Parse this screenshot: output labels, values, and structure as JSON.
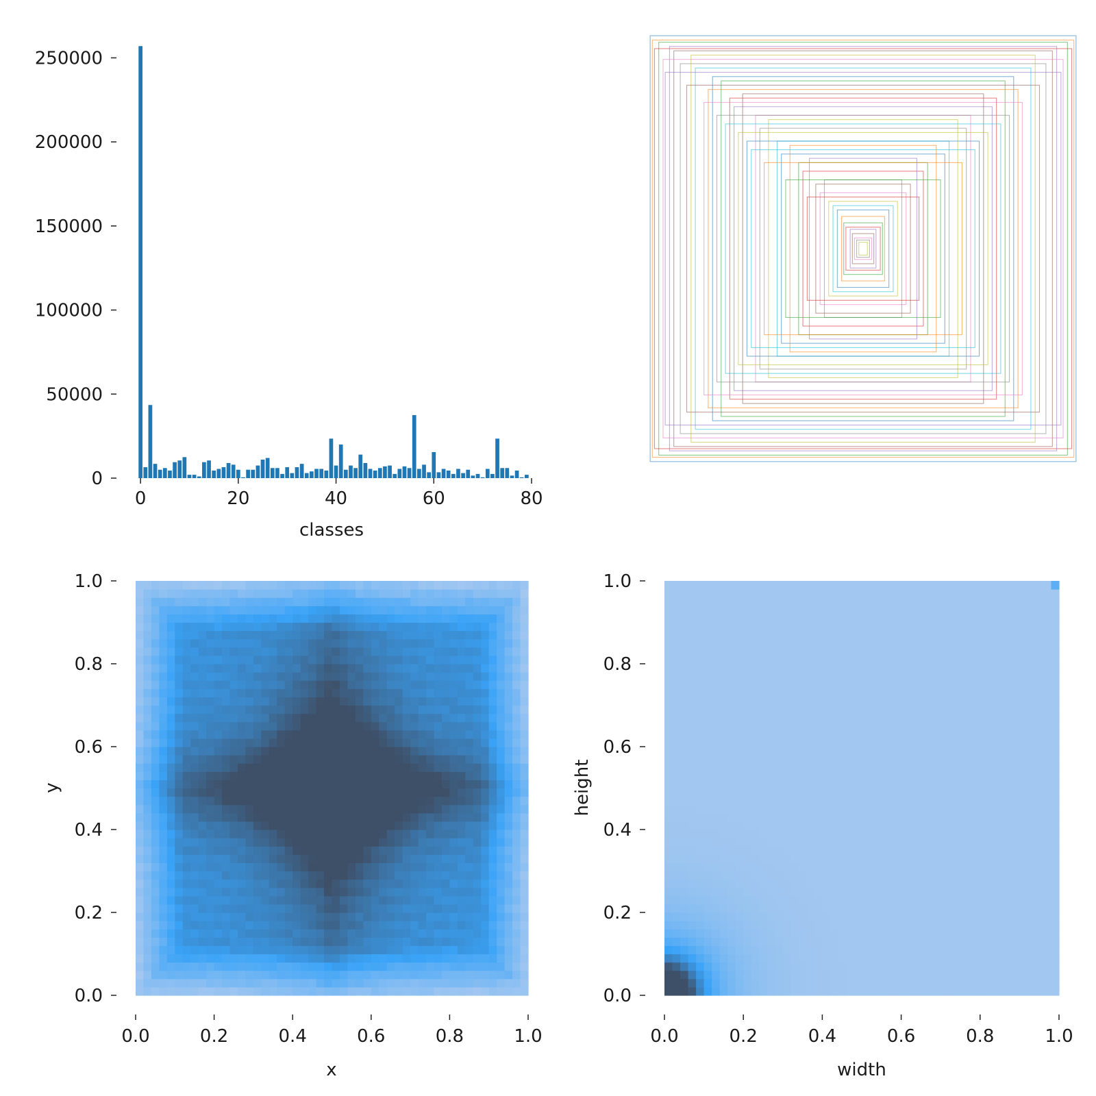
{
  "chart_data": [
    {
      "id": "classes-histogram",
      "type": "bar",
      "xlabel": "classes",
      "ylabel": "",
      "xlim": [
        -1,
        80
      ],
      "ylim": [
        0,
        262000
      ],
      "xticks": [
        0,
        20,
        40,
        60,
        80
      ],
      "yticks": [
        0,
        50000,
        100000,
        150000,
        200000,
        250000
      ],
      "xtick_labels": [
        "0",
        "20",
        "40",
        "60",
        "80"
      ],
      "ytick_labels": [
        "0",
        "50000",
        "100000",
        "150000",
        "200000",
        "250000"
      ],
      "color": "#1f77b4",
      "categories": [
        0,
        1,
        2,
        3,
        4,
        5,
        6,
        7,
        8,
        9,
        10,
        11,
        12,
        13,
        14,
        15,
        16,
        17,
        18,
        19,
        20,
        21,
        22,
        23,
        24,
        25,
        26,
        27,
        28,
        29,
        30,
        31,
        32,
        33,
        34,
        35,
        36,
        37,
        38,
        39,
        40,
        41,
        42,
        43,
        44,
        45,
        46,
        47,
        48,
        49,
        50,
        51,
        52,
        53,
        54,
        55,
        56,
        57,
        58,
        59,
        60,
        61,
        62,
        63,
        64,
        65,
        66,
        67,
        68,
        69,
        70,
        71,
        72,
        73,
        74,
        75,
        76,
        77,
        78,
        79
      ],
      "values": [
        257000,
        6500,
        43500,
        8500,
        5000,
        6000,
        4500,
        9500,
        10500,
        12500,
        2000,
        2000,
        1000,
        9500,
        10500,
        4500,
        5500,
        6500,
        9000,
        8000,
        5000,
        500,
        5000,
        5000,
        7500,
        11000,
        12000,
        6000,
        6000,
        2500,
        6500,
        3000,
        6500,
        8500,
        3000,
        4000,
        5500,
        5500,
        4500,
        23500,
        7500,
        20000,
        5000,
        7500,
        6000,
        14000,
        9000,
        5500,
        4500,
        6000,
        7000,
        7500,
        2500,
        5500,
        7000,
        6000,
        37500,
        5500,
        8000,
        3500,
        15500,
        3500,
        5500,
        4500,
        2500,
        5500,
        3000,
        5000,
        1500,
        2500,
        500,
        5500,
        2500,
        23500,
        6000,
        6000,
        1500,
        4500,
        500,
        2000
      ]
    },
    {
      "id": "box-overlay",
      "type": "boxes",
      "description_values": "normalized label boxes (w, h) drawn centered",
      "box_sizes": [
        [
          0.99,
          0.99
        ],
        [
          0.98,
          0.97
        ],
        [
          0.95,
          0.96
        ],
        [
          0.97,
          0.93
        ],
        [
          0.9,
          0.94
        ],
        [
          0.88,
          0.92
        ],
        [
          0.93,
          0.88
        ],
        [
          0.85,
          0.86
        ],
        [
          0.8,
          0.9
        ],
        [
          0.78,
          0.84
        ],
        [
          0.7,
          0.8
        ],
        [
          0.72,
          0.74
        ],
        [
          0.66,
          0.78
        ],
        [
          0.62,
          0.7
        ],
        [
          0.6,
          0.66
        ],
        [
          0.56,
          0.72
        ],
        [
          0.5,
          0.62
        ],
        [
          0.48,
          0.56
        ],
        [
          0.44,
          0.6
        ],
        [
          0.4,
          0.5
        ],
        [
          0.38,
          0.44
        ],
        [
          0.34,
          0.48
        ],
        [
          0.3,
          0.4
        ],
        [
          0.28,
          0.36
        ],
        [
          0.25,
          0.42
        ],
        [
          0.22,
          0.3
        ],
        [
          0.2,
          0.26
        ],
        [
          0.18,
          0.32
        ],
        [
          0.16,
          0.22
        ],
        [
          0.14,
          0.2
        ],
        [
          0.12,
          0.18
        ],
        [
          0.1,
          0.15
        ],
        [
          0.09,
          0.12
        ],
        [
          0.08,
          0.1
        ],
        [
          0.06,
          0.09
        ],
        [
          0.05,
          0.07
        ],
        [
          0.04,
          0.05
        ],
        [
          0.03,
          0.04
        ],
        [
          0.02,
          0.03
        ],
        [
          0.64,
          0.58
        ],
        [
          0.54,
          0.5
        ],
        [
          0.46,
          0.4
        ],
        [
          0.36,
          0.32
        ],
        [
          0.26,
          0.24
        ],
        [
          0.92,
          0.82
        ],
        [
          0.82,
          0.76
        ],
        [
          0.74,
          0.68
        ],
        [
          0.68,
          0.62
        ],
        [
          0.58,
          0.54
        ],
        [
          0.52,
          0.46
        ]
      ]
    },
    {
      "id": "xy-density",
      "type": "heatmap",
      "xlabel": "x",
      "ylabel": "y",
      "xlim": [
        0,
        1
      ],
      "ylim": [
        0,
        1
      ],
      "xticks": [
        "0.0",
        "0.2",
        "0.4",
        "0.6",
        "0.8",
        "1.0"
      ],
      "yticks": [
        "0.0",
        "0.2",
        "0.4",
        "0.6",
        "0.8",
        "1.0"
      ],
      "colors": [
        "#a9c9f0",
        "#3aa3f7",
        "#3e5068"
      ]
    },
    {
      "id": "wh-density",
      "type": "heatmap",
      "xlabel": "width",
      "ylabel": "height",
      "xlim": [
        0,
        1
      ],
      "ylim": [
        0,
        1
      ],
      "xticks": [
        "0.0",
        "0.2",
        "0.4",
        "0.6",
        "0.8",
        "1.0"
      ],
      "yticks": [
        "0.0",
        "0.2",
        "0.4",
        "0.6",
        "0.8",
        "1.0"
      ],
      "colors": [
        "#aecbef",
        "#3aa3f7",
        "#3e5068"
      ]
    }
  ]
}
